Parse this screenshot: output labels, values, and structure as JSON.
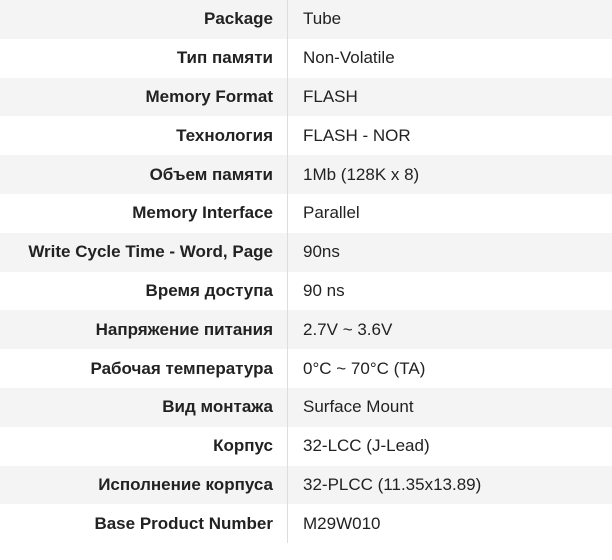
{
  "table": {
    "rows": [
      {
        "label": "Package",
        "value": "Tube"
      },
      {
        "label": "Тип памяти",
        "value": "Non-Volatile"
      },
      {
        "label": "Memory Format",
        "value": "FLASH"
      },
      {
        "label": "Технология",
        "value": "FLASH - NOR"
      },
      {
        "label": "Объем памяти",
        "value": "1Mb (128K x 8)"
      },
      {
        "label": "Memory Interface",
        "value": "Parallel"
      },
      {
        "label": "Write Cycle Time - Word, Page",
        "value": "90ns"
      },
      {
        "label": "Время доступа",
        "value": "90 ns"
      },
      {
        "label": "Напряжение питания",
        "value": "2.7V ~ 3.6V"
      },
      {
        "label": "Рабочая температура",
        "value": "0°C ~ 70°C (TA)"
      },
      {
        "label": "Вид монтажа",
        "value": "Surface Mount"
      },
      {
        "label": "Корпус",
        "value": "32-LCC (J-Lead)"
      },
      {
        "label": "Исполнение корпуса",
        "value": "32-PLCC (11.35x13.89)"
      },
      {
        "label": "Base Product Number",
        "value": "M29W010"
      }
    ]
  },
  "colors": {
    "background": "#ffffff",
    "row_stripe": "#f4f4f4",
    "column_divider": "#dddddd",
    "text": "#222222"
  }
}
